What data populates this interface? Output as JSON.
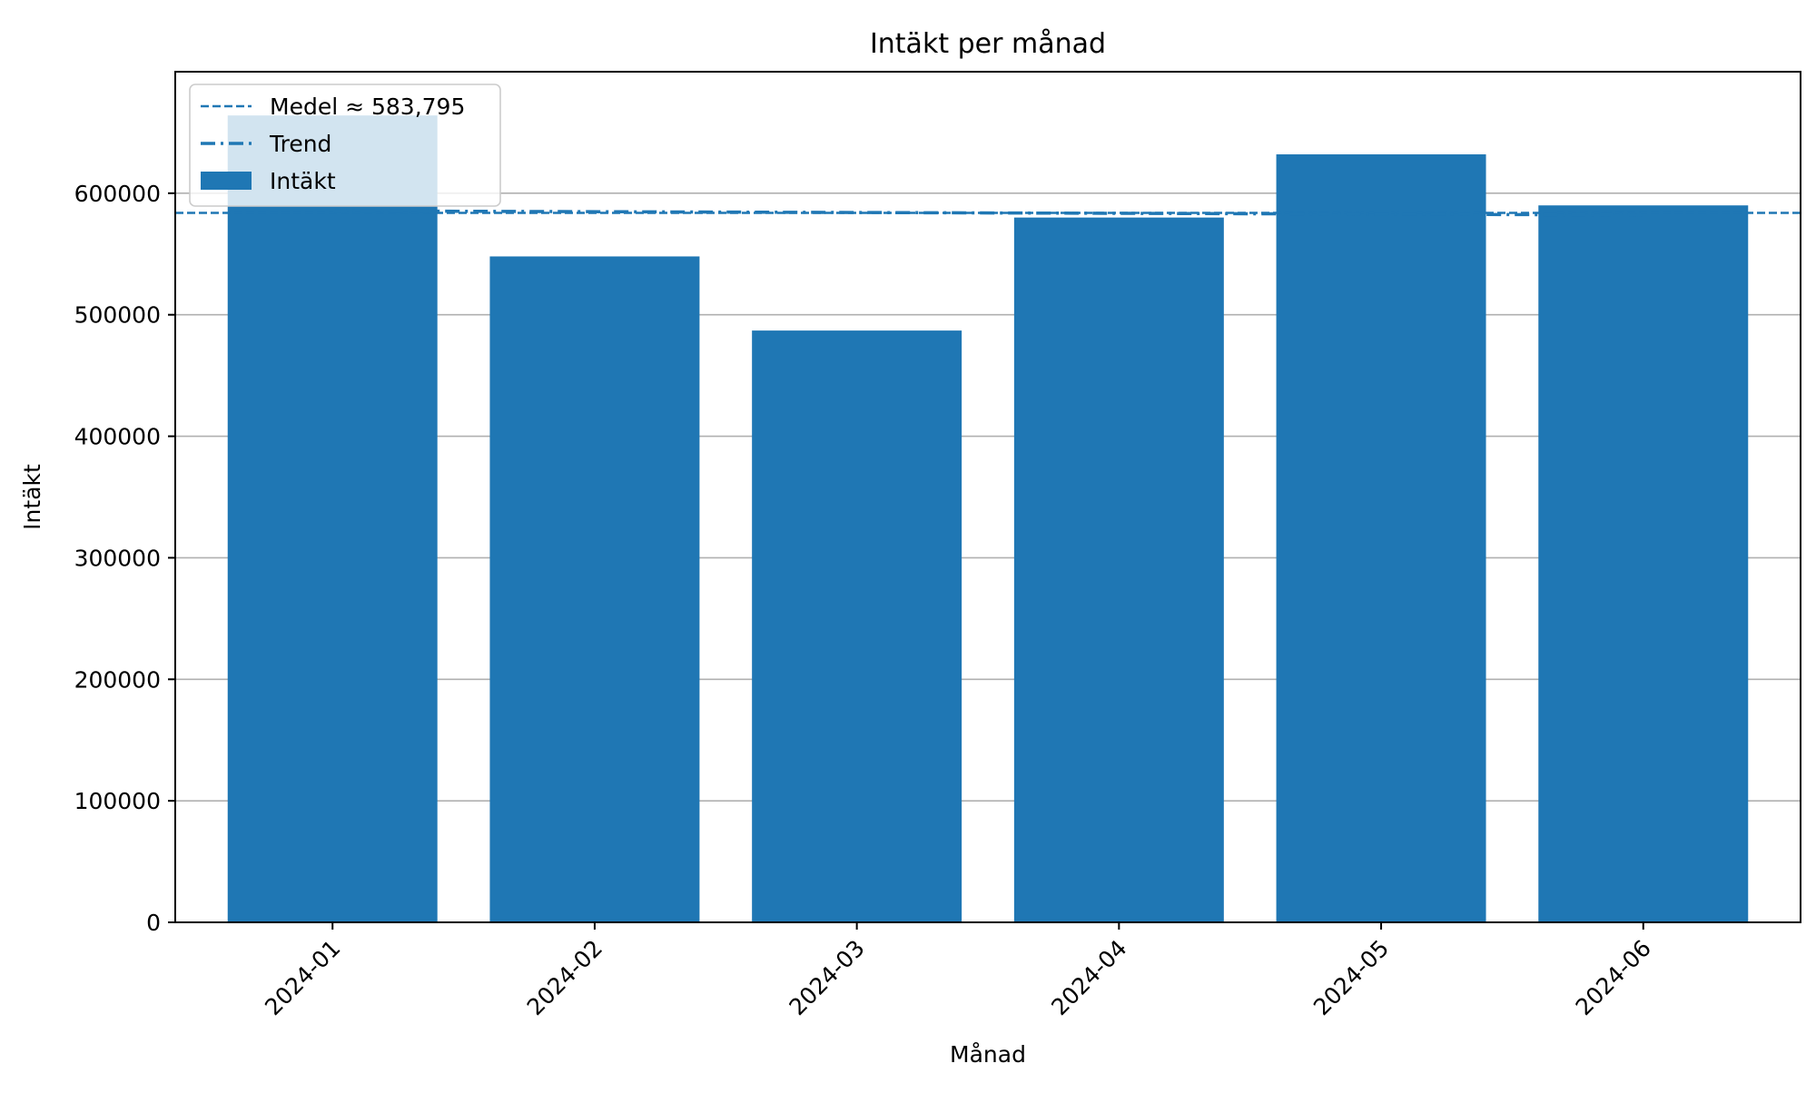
{
  "chart_data": {
    "type": "bar",
    "title": "Intäkt per månad",
    "xlabel": "Månad",
    "ylabel": "Intäkt",
    "categories": [
      "2024-01",
      "2024-02",
      "2024-03",
      "2024-04",
      "2024-05",
      "2024-06"
    ],
    "series": [
      {
        "name": "Intäkt",
        "values": [
          664000,
          548000,
          487000,
          580000,
          632000,
          590000
        ],
        "color": "#1f77b4"
      }
    ],
    "mean": {
      "label": "Medel ≈ 583,795",
      "value": 583795,
      "style": "dashed",
      "color": "#1f77b4"
    },
    "trend": {
      "label": "Trend",
      "start": 585500,
      "end": 582100,
      "style": "dash-dot",
      "color": "#1f77b4"
    },
    "ylim": [
      0,
      700000
    ],
    "yticks": [
      0,
      100000,
      200000,
      300000,
      400000,
      500000,
      600000
    ],
    "ytick_labels": [
      "0",
      "100000",
      "200000",
      "300000",
      "400000",
      "500000",
      "600000"
    ],
    "grid": "y",
    "legend_position": "top-left",
    "xtick_rotation": 45
  }
}
